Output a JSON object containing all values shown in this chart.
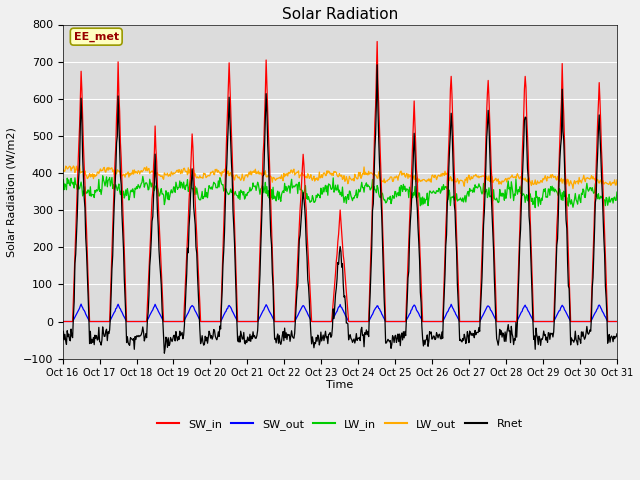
{
  "title": "Solar Radiation",
  "ylabel": "Solar Radiation (W/m2)",
  "xlabel": "Time",
  "annotation": "EE_met",
  "ylim": [
    -100,
    800
  ],
  "x_tick_labels": [
    "Oct 16",
    "Oct 17",
    "Oct 18",
    "Oct 19",
    "Oct 20",
    "Oct 21",
    "Oct 22",
    "Oct 23",
    "Oct 24",
    "Oct 25",
    "Oct 26",
    "Oct 27",
    "Oct 28",
    "Oct 29",
    "Oct 30",
    "Oct 31"
  ],
  "legend": [
    {
      "label": "SW_in",
      "color": "#ff0000"
    },
    {
      "label": "SW_out",
      "color": "#0000ff"
    },
    {
      "label": "LW_in",
      "color": "#00cc00"
    },
    {
      "label": "LW_out",
      "color": "#ffaa00"
    },
    {
      "label": "Rnet",
      "color": "#000000"
    }
  ],
  "fig_bg": "#f0f0f0",
  "plot_bg": "#dcdcdc",
  "annotation_bg": "#ffffc0",
  "annotation_border": "#999900",
  "annotation_text_color": "#990000",
  "grid_color": "#ffffff"
}
